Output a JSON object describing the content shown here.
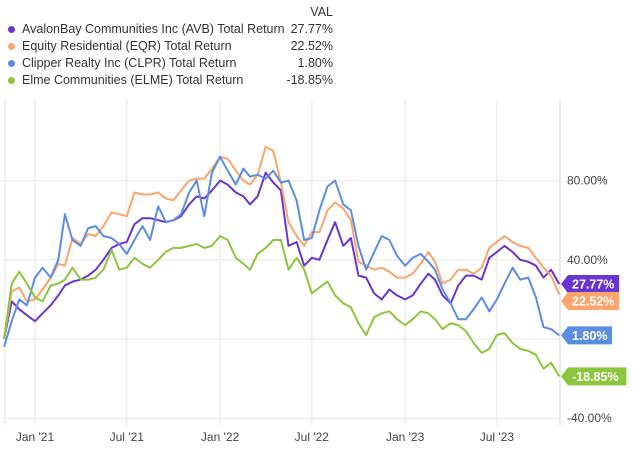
{
  "legend": {
    "header": "VAL"
  },
  "chart_data": {
    "type": "line",
    "title": "",
    "xlabel": "",
    "ylabel": "",
    "y_unit": "%",
    "ylim": [
      -40,
      100
    ],
    "grid": true,
    "legend_position": "top-left",
    "y_axis_side": "right",
    "y_ticks": [
      {
        "value": 80,
        "label": "80.00%"
      },
      {
        "value": 40,
        "label": "40.00%"
      },
      {
        "value": -40,
        "label": "-40.00%"
      }
    ],
    "x_ticks": [
      {
        "date": "2021-01-01",
        "label": "Jan '21"
      },
      {
        "date": "2021-07-01",
        "label": "Jul '21"
      },
      {
        "date": "2022-01-01",
        "label": "Jan '22"
      },
      {
        "date": "2022-07-01",
        "label": "Jul '22"
      },
      {
        "date": "2023-01-01",
        "label": "Jan '23"
      },
      {
        "date": "2023-07-01",
        "label": "Jul '23"
      }
    ],
    "x": [
      "2020-11-01",
      "2020-11-16",
      "2020-12-01",
      "2020-12-16",
      "2021-01-01",
      "2021-01-16",
      "2021-02-01",
      "2021-02-16",
      "2021-03-01",
      "2021-03-16",
      "2021-04-01",
      "2021-04-16",
      "2021-05-01",
      "2021-05-16",
      "2021-06-01",
      "2021-06-16",
      "2021-07-01",
      "2021-07-16",
      "2021-08-01",
      "2021-08-16",
      "2021-09-01",
      "2021-09-16",
      "2021-10-01",
      "2021-10-16",
      "2021-11-01",
      "2021-11-16",
      "2021-12-01",
      "2021-12-16",
      "2022-01-01",
      "2022-01-16",
      "2022-02-01",
      "2022-02-16",
      "2022-03-01",
      "2022-03-16",
      "2022-04-01",
      "2022-04-16",
      "2022-05-01",
      "2022-05-16",
      "2022-06-01",
      "2022-06-16",
      "2022-07-01",
      "2022-07-16",
      "2022-08-01",
      "2022-08-16",
      "2022-09-01",
      "2022-09-16",
      "2022-10-01",
      "2022-10-16",
      "2022-11-01",
      "2022-11-16",
      "2022-12-01",
      "2022-12-16",
      "2023-01-01",
      "2023-01-16",
      "2023-02-01",
      "2023-02-16",
      "2023-03-01",
      "2023-03-16",
      "2023-04-01",
      "2023-04-16",
      "2023-05-01",
      "2023-05-16",
      "2023-06-01",
      "2023-06-16",
      "2023-07-01",
      "2023-07-16",
      "2023-08-01",
      "2023-08-16",
      "2023-09-01",
      "2023-09-16",
      "2023-10-01",
      "2023-10-16",
      "2023-11-01"
    ],
    "series": [
      {
        "name": "AvalonBay Communities Inc (AVB) Total Return",
        "color": "#6a35cf",
        "last_label": "27.77%",
        "values": [
          0,
          19,
          15,
          12,
          9,
          13,
          17,
          22,
          27,
          29,
          30,
          32,
          35,
          40,
          46,
          48,
          49,
          58,
          61,
          61,
          60,
          59,
          60,
          62,
          68,
          72,
          71,
          75,
          80,
          78,
          74,
          72,
          68,
          72,
          84,
          79,
          75,
          47,
          49,
          37,
          41,
          40,
          50,
          59,
          47,
          51,
          32,
          31,
          23,
          20,
          25,
          22,
          20,
          22,
          28,
          33,
          30,
          22,
          18,
          27,
          32,
          32,
          30,
          41,
          44,
          47,
          44,
          40,
          39,
          37,
          31,
          35,
          27.77
        ]
      },
      {
        "name": "Equity Residential (EQR) Total Return",
        "color": "#fda46c",
        "last_label": "22.52%",
        "values": [
          0,
          24,
          26,
          19,
          20,
          25,
          31,
          38,
          37,
          51,
          48,
          53,
          52,
          57,
          64,
          63,
          62,
          74,
          73,
          73,
          74,
          71,
          70,
          75,
          80,
          81,
          81,
          86,
          92,
          91,
          85,
          80,
          78,
          83,
          97,
          95,
          79,
          59,
          52,
          47,
          54,
          54,
          65,
          69,
          66,
          60,
          39,
          37,
          35,
          36,
          34,
          31,
          31,
          33,
          38,
          44,
          39,
          28,
          30,
          35,
          35,
          33,
          36,
          46,
          49,
          52,
          49,
          47,
          46,
          41,
          36,
          32,
          22.52
        ]
      },
      {
        "name": "Clipper Realty Inc (CLPR) Total Return",
        "color": "#5b8ee0",
        "last_label": "1.80%",
        "values": [
          -4,
          9,
          20,
          17,
          31,
          36,
          31,
          40,
          63,
          50,
          47,
          56,
          57,
          52,
          51,
          48,
          43,
          50,
          57,
          50,
          67,
          59,
          60,
          63,
          74,
          80,
          62,
          84,
          92,
          85,
          78,
          86,
          82,
          83,
          81,
          85,
          79,
          80,
          70,
          50,
          51,
          65,
          77,
          80,
          68,
          65,
          47,
          35,
          44,
          52,
          50,
          42,
          37,
          41,
          43,
          39,
          35,
          25,
          18,
          10,
          10,
          15,
          21,
          14,
          20,
          28,
          36,
          30,
          31,
          21,
          6,
          5,
          1.8
        ]
      },
      {
        "name": "Elme Communities (ELME) Total Return",
        "color": "#8cc63e",
        "last_label": "-18.85%",
        "values": [
          0,
          28,
          34,
          28,
          21,
          19,
          27,
          28,
          30,
          36,
          30,
          30,
          31,
          35,
          45,
          35,
          36,
          41,
          38,
          36,
          40,
          44,
          46,
          46,
          47,
          48,
          46,
          47,
          52,
          50,
          41,
          38,
          35,
          43,
          46,
          50,
          50,
          35,
          41,
          35,
          23,
          26,
          29,
          22,
          18,
          16,
          8,
          2,
          11,
          13,
          14,
          10,
          7,
          10,
          14,
          13,
          10,
          5,
          8,
          7,
          4,
          -2,
          -7,
          -5,
          2,
          3,
          -2,
          -5,
          -6,
          -8,
          -15,
          -12,
          -18.85
        ]
      }
    ]
  }
}
